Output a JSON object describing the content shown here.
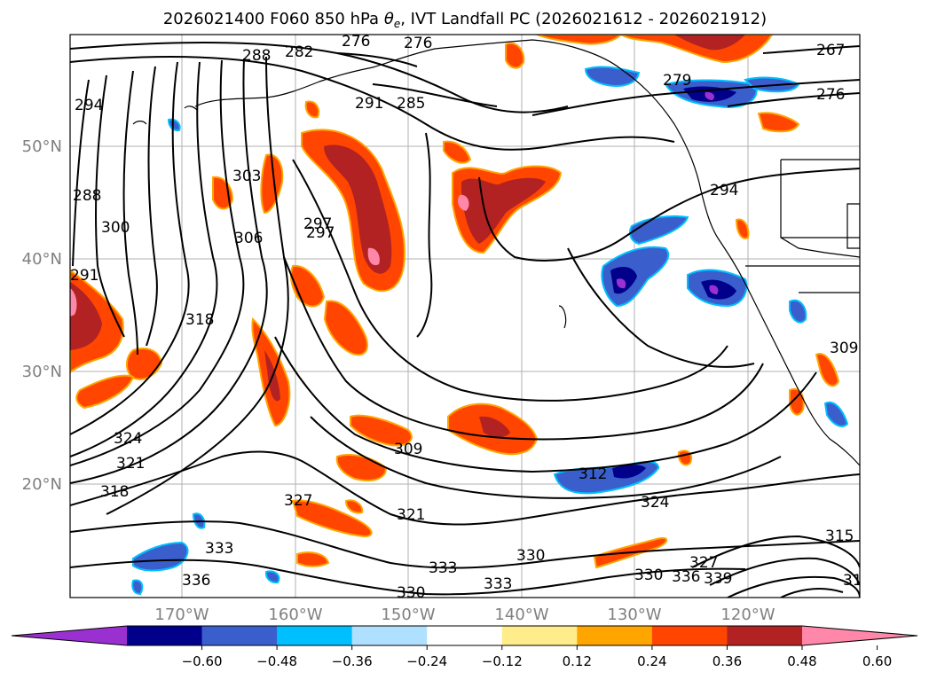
{
  "title_prefix": "2026021400 F060 850 hPa ",
  "title_symbol": "θ",
  "title_subscript": "e",
  "title_suffix": ", IVT Landfall PC (2026021612 - 2026021912)",
  "lon_ticks": [
    "170°W",
    "160°W",
    "150°W",
    "140°W",
    "130°W",
    "120°W"
  ],
  "lat_ticks": [
    "50°N",
    "40°N",
    "30°N",
    "20°N"
  ],
  "colorbar": {
    "ticks": [
      "−0.60",
      "−0.48",
      "−0.36",
      "−0.24",
      "−0.12",
      "0.12",
      "0.24",
      "0.36",
      "0.48",
      "0.60"
    ],
    "colors": [
      "#9b30d0",
      "#00008b",
      "#3a5fcd",
      "#00bfff",
      "#b0e0ff",
      "#ffffff",
      "#ffec8b",
      "#ffa500",
      "#ff4500",
      "#b22222",
      "#ff88aa"
    ]
  },
  "contour_labels": [
    "276",
    "279",
    "276",
    "285",
    "288",
    "282",
    "291",
    "294",
    "297",
    "288",
    "300",
    "303",
    "306",
    "297",
    "294",
    "291",
    "318",
    "309",
    "312",
    "324",
    "321",
    "318",
    "327",
    "321",
    "333",
    "333",
    "330",
    "330",
    "333",
    "336",
    "336",
    "339",
    "327",
    "324",
    "315",
    "309",
    "330",
    "31",
    "267",
    "276"
  ]
}
